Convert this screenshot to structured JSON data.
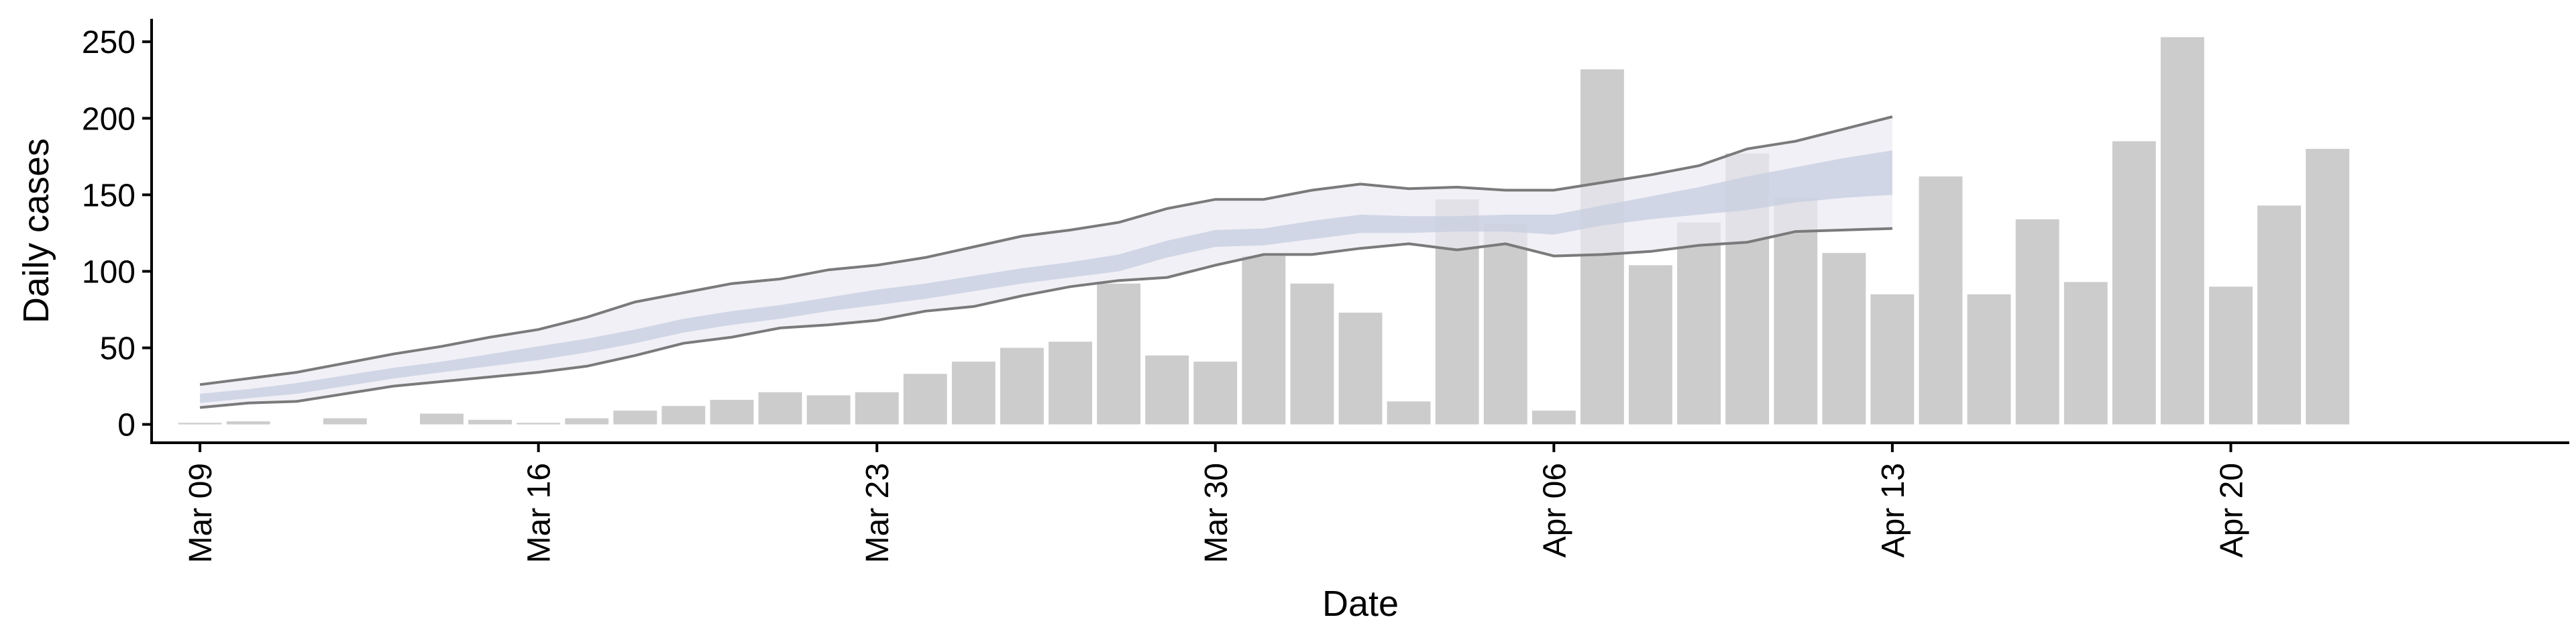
{
  "chart_data": {
    "type": "bar",
    "xlabel": "Date",
    "ylabel": "Daily cases",
    "ylim": [
      -12,
      265
    ],
    "yticks": [
      0,
      50,
      100,
      150,
      200,
      250
    ],
    "x_start": "Mar 08",
    "x_end": "Apr 27",
    "x_ticks": [
      "Mar 09",
      "Mar 16",
      "Mar 23",
      "Mar 30",
      "Apr 06",
      "Apr 13",
      "Apr 20"
    ],
    "grid": false,
    "legend": "none",
    "bars": {
      "color": "#cccccc",
      "dates": [
        "Mar 09",
        "Mar 10",
        "Mar 11",
        "Mar 12",
        "Mar 13",
        "Mar 14",
        "Mar 15",
        "Mar 16",
        "Mar 17",
        "Mar 18",
        "Mar 19",
        "Mar 20",
        "Mar 21",
        "Mar 22",
        "Mar 23",
        "Mar 24",
        "Mar 25",
        "Mar 26",
        "Mar 27",
        "Mar 28",
        "Mar 29",
        "Mar 30",
        "Mar 31",
        "Apr 01",
        "Apr 02",
        "Apr 03",
        "Apr 04",
        "Apr 05",
        "Apr 06",
        "Apr 07",
        "Apr 08",
        "Apr 09",
        "Apr 10",
        "Apr 11",
        "Apr 12",
        "Apr 13",
        "Apr 14",
        "Apr 15",
        "Apr 16",
        "Apr 17",
        "Apr 18",
        "Apr 19",
        "Apr 20",
        "Apr 21",
        "Apr 22",
        "Apr 23"
      ],
      "values": [
        1,
        2,
        0,
        4,
        0,
        7,
        3,
        1,
        4,
        9,
        12,
        16,
        21,
        19,
        21,
        33,
        41,
        50,
        54,
        92,
        45,
        41,
        110,
        92,
        73,
        15,
        147,
        131,
        9,
        232,
        104,
        132,
        177,
        148,
        112,
        85,
        162,
        85,
        134,
        93,
        185,
        253,
        90,
        143,
        180,
        0
      ]
    },
    "nowcast": {
      "fill_outer": "#e9eaf2",
      "fill_inner": "#c7cde0",
      "line_color": "#7a7a7a",
      "dates": [
        "Mar 09",
        "Mar 10",
        "Mar 11",
        "Mar 12",
        "Mar 13",
        "Mar 14",
        "Mar 15",
        "Mar 16",
        "Mar 17",
        "Mar 18",
        "Mar 19",
        "Mar 20",
        "Mar 21",
        "Mar 22",
        "Mar 23",
        "Mar 24",
        "Mar 25",
        "Mar 26",
        "Mar 27",
        "Mar 28",
        "Mar 29",
        "Mar 30",
        "Mar 31",
        "Apr 01",
        "Apr 02",
        "Apr 03",
        "Apr 04",
        "Apr 05",
        "Apr 06",
        "Apr 07",
        "Apr 08",
        "Apr 09",
        "Apr 10",
        "Apr 11",
        "Apr 12",
        "Apr 13"
      ],
      "upper": [
        26,
        30,
        34,
        40,
        46,
        51,
        57,
        62,
        70,
        80,
        86,
        92,
        95,
        101,
        104,
        109,
        116,
        123,
        127,
        132,
        141,
        147,
        147,
        153,
        157,
        154,
        155,
        153,
        153,
        158,
        163,
        169,
        180,
        185,
        193,
        201
      ],
      "lower": [
        11,
        14,
        15,
        20,
        25,
        28,
        31,
        34,
        38,
        45,
        53,
        57,
        63,
        65,
        68,
        74,
        77,
        84,
        90,
        94,
        96,
        104,
        111,
        111,
        115,
        118,
        114,
        118,
        110,
        111,
        113,
        117,
        119,
        126,
        127,
        128
      ],
      "inner_upper": [
        20,
        23,
        27,
        32,
        37,
        41,
        46,
        51,
        56,
        62,
        69,
        74,
        78,
        83,
        88,
        92,
        97,
        102,
        106,
        111,
        120,
        127,
        128,
        133,
        137,
        136,
        136,
        137,
        137,
        143,
        149,
        155,
        162,
        168,
        174,
        179
      ],
      "inner_lower": [
        14,
        17,
        20,
        25,
        30,
        34,
        38,
        42,
        47,
        53,
        60,
        65,
        69,
        74,
        78,
        82,
        87,
        92,
        96,
        100,
        109,
        116,
        117,
        121,
        125,
        125,
        126,
        126,
        124,
        130,
        134,
        137,
        140,
        145,
        148,
        150
      ]
    }
  }
}
